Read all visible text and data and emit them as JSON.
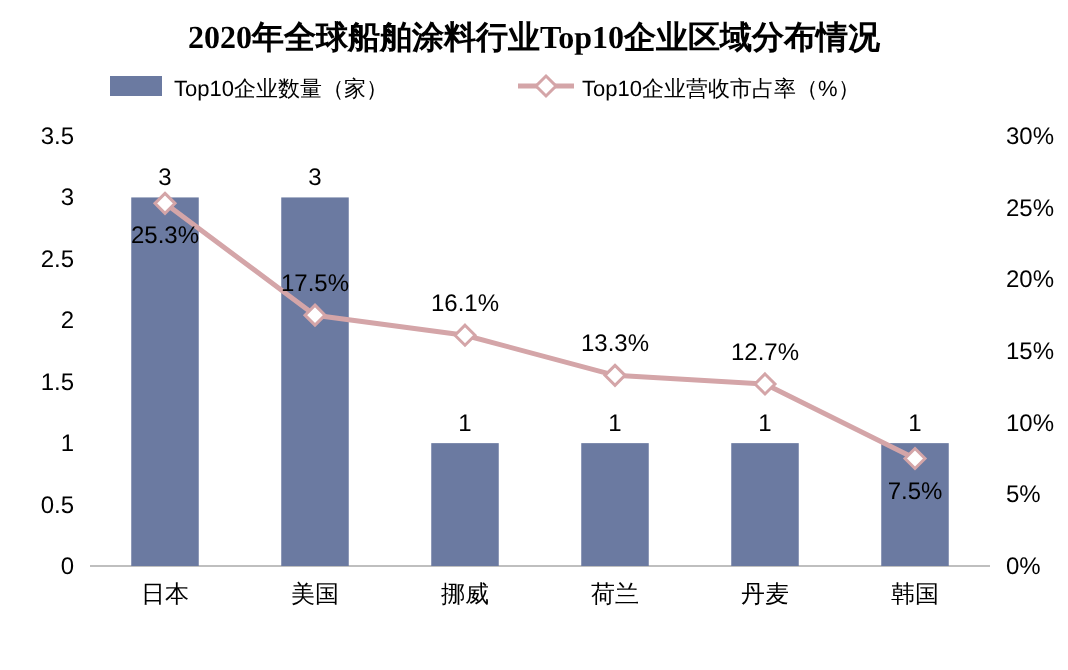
{
  "chart_data": {
    "type": "bar",
    "title": "2020年全球船舶涂料行业Top10企业区域分布情况",
    "categories": [
      "日本",
      "美国",
      "挪威",
      "荷兰",
      "丹麦",
      "韩国"
    ],
    "series": [
      {
        "name": "Top10企业数量（家）",
        "color": "#6b7aa1",
        "values": [
          3,
          3,
          1,
          1,
          1,
          1
        ],
        "value_labels": [
          "3",
          "3",
          "1",
          "1",
          "1",
          "1"
        ]
      },
      {
        "name": "Top10企业营收市占率（%）",
        "type": "line",
        "axis": "y2",
        "color": "#d4a5a8",
        "marker": "diamond",
        "line_style": "solid",
        "values": [
          25.3,
          17.5,
          16.1,
          13.3,
          12.7,
          7.5
        ],
        "value_labels": [
          "25.3%",
          "17.5%",
          "16.1%",
          "13.3%",
          "12.7%",
          "7.5%"
        ]
      }
    ],
    "ylim": [
      0,
      3.5
    ],
    "yticks": [
      0,
      0.5,
      1,
      1.5,
      2,
      2.5,
      3,
      3.5
    ],
    "y2lim": [
      0,
      30
    ],
    "y2ticks": [
      {
        "value": 0,
        "label": "0%"
      },
      {
        "value": 5,
        "label": "5%"
      },
      {
        "value": 10,
        "label": "10%"
      },
      {
        "value": 15,
        "label": "15%"
      },
      {
        "value": 20,
        "label": "20%"
      },
      {
        "value": 25,
        "label": "25%"
      },
      {
        "value": 30,
        "label": "30%"
      }
    ],
    "legend": "top",
    "grid": false
  }
}
